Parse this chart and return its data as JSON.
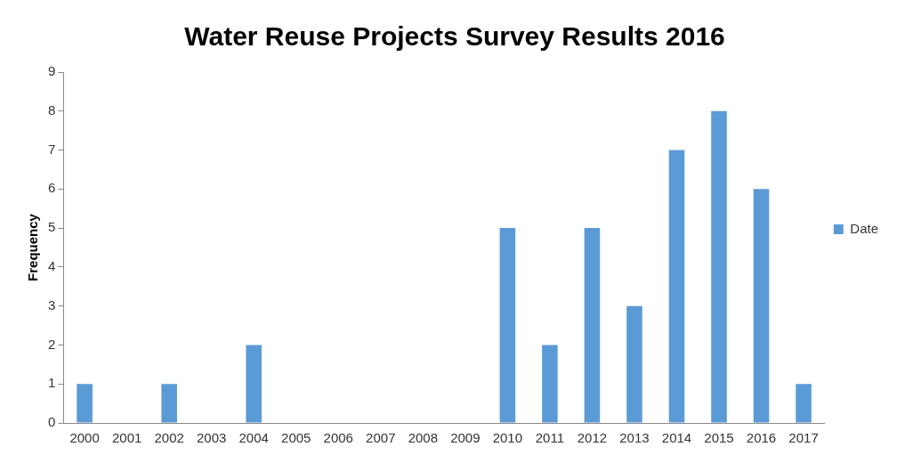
{
  "chart_data": {
    "type": "bar",
    "title": "Water Reuse Projects Survey Results 2016",
    "ylabel": "Frequency",
    "categories": [
      "2000",
      "2001",
      "2002",
      "2003",
      "2004",
      "2005",
      "2006",
      "2007",
      "2008",
      "2009",
      "2010",
      "2011",
      "2012",
      "2013",
      "2014",
      "2015",
      "2016",
      "2017"
    ],
    "series": [
      {
        "name": "Date",
        "color": "#5b9bd5",
        "values": [
          1,
          0,
          1,
          0,
          2,
          0,
          0,
          0,
          0,
          0,
          5,
          2,
          5,
          3,
          7,
          8,
          6,
          1
        ]
      }
    ],
    "ylim": [
      0,
      9
    ],
    "yticks": [
      0,
      1,
      2,
      3,
      4,
      5,
      6,
      7,
      8,
      9
    ],
    "grid": false,
    "legend": "right"
  }
}
